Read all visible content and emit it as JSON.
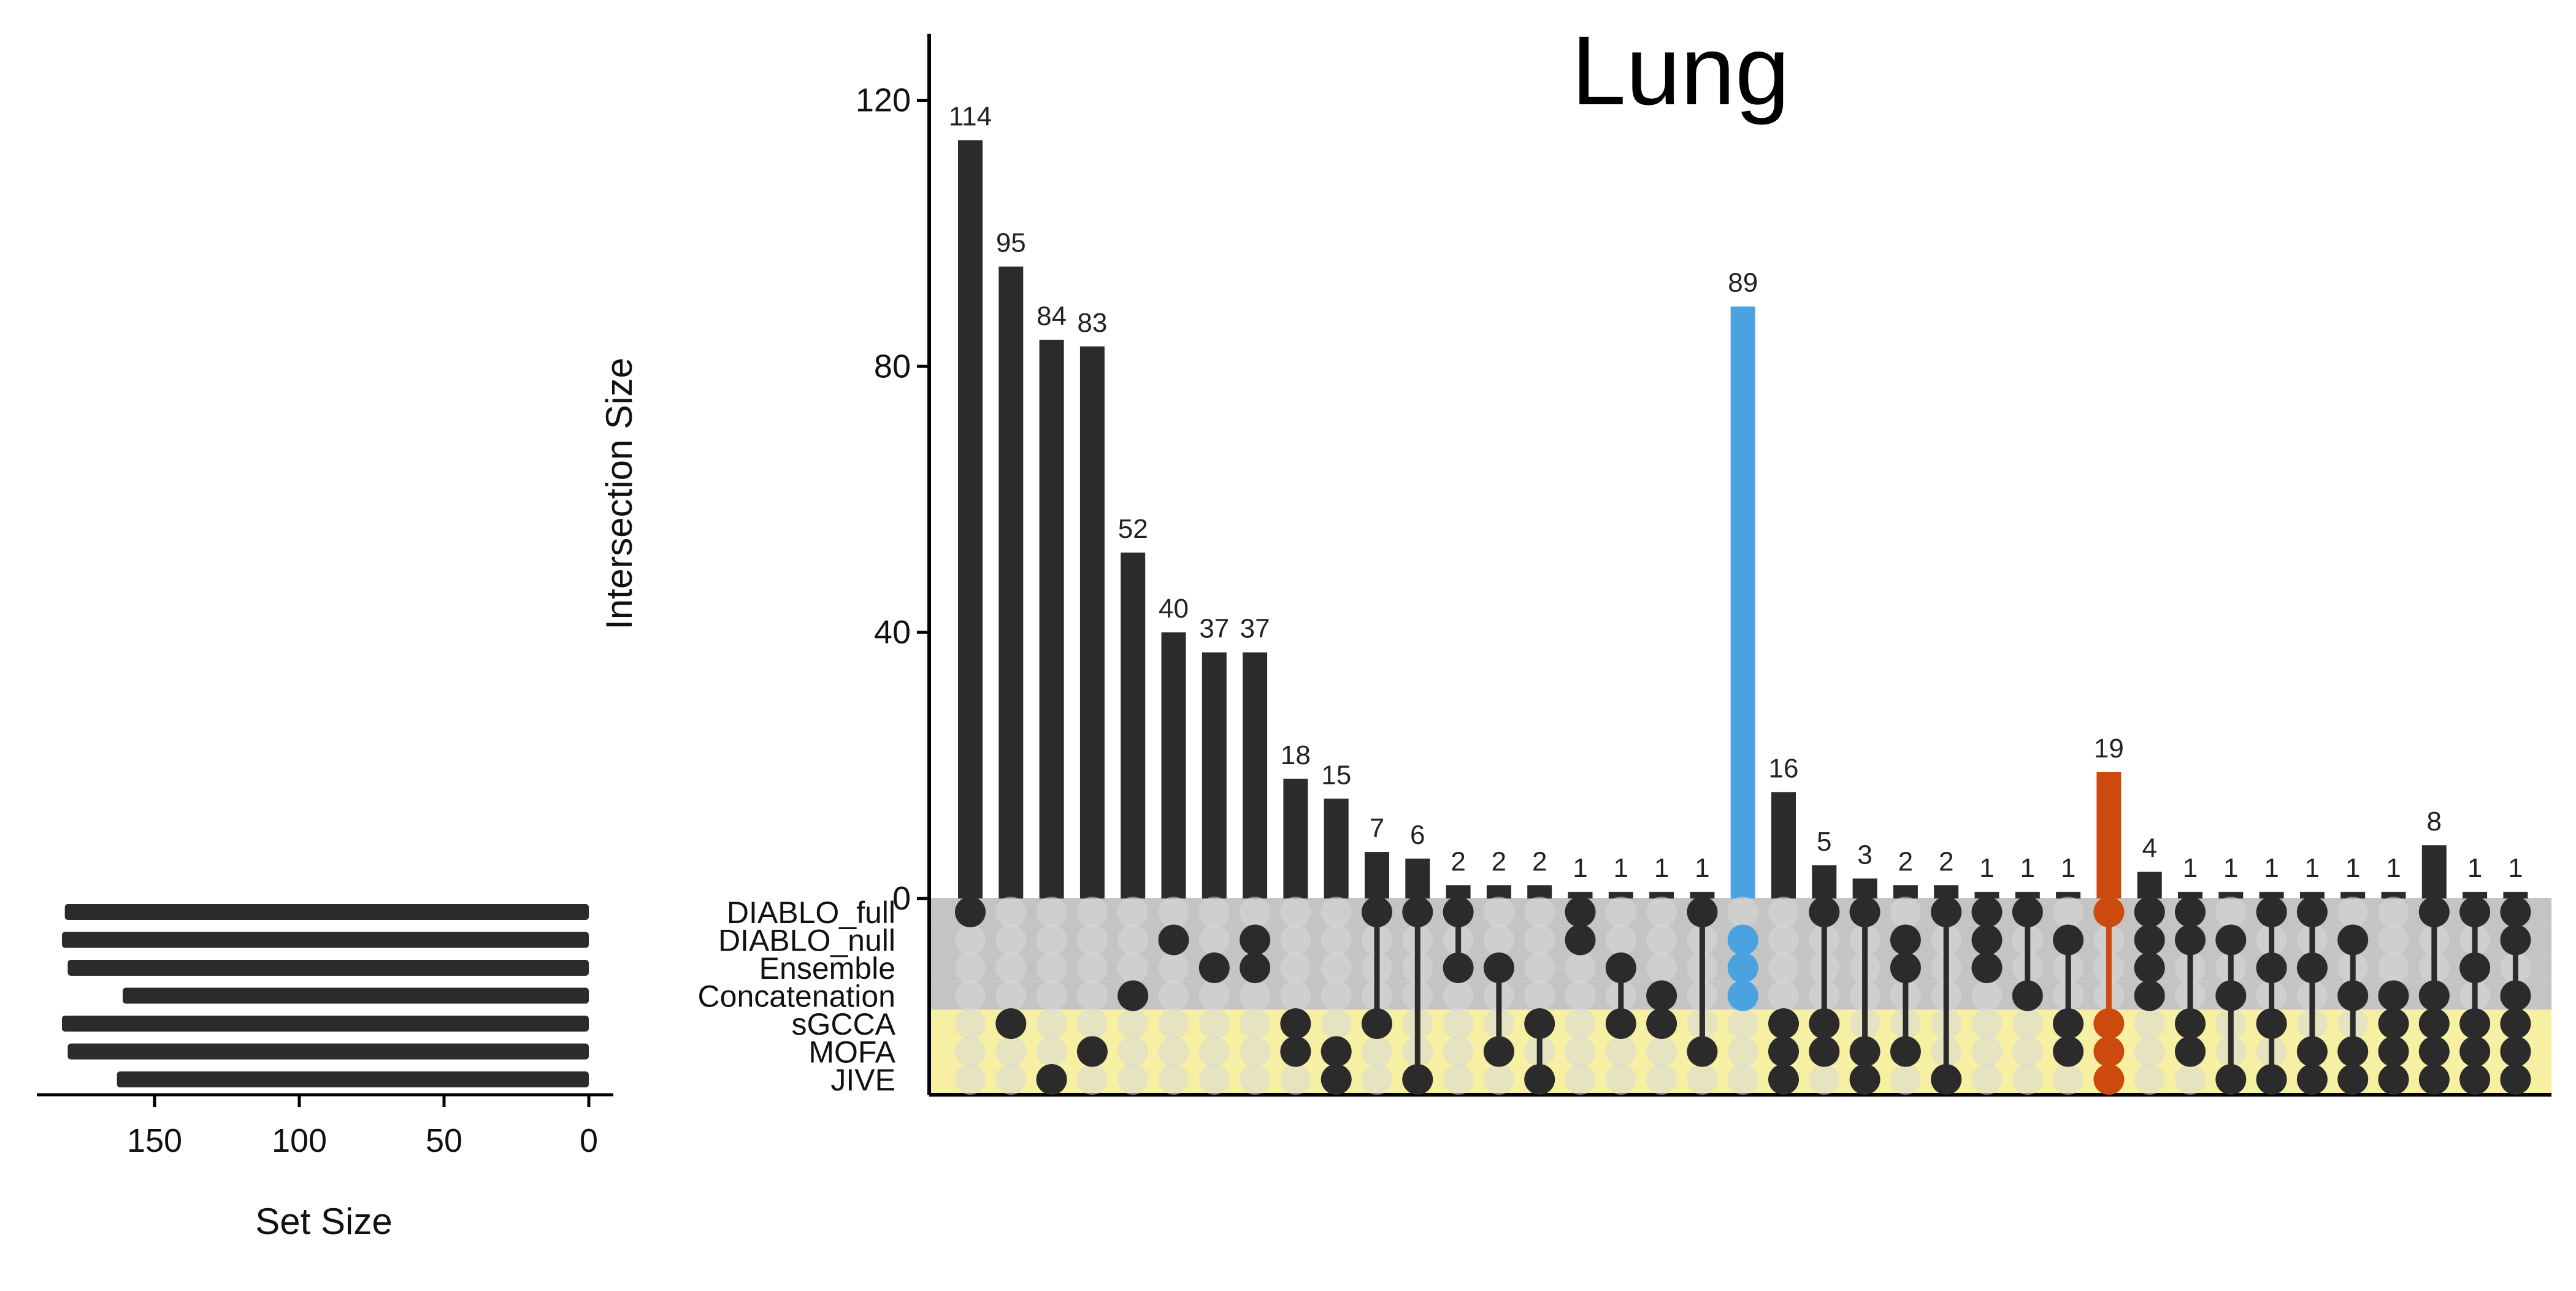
{
  "chart_data": {
    "type": "bar",
    "title": "Lung",
    "ylabel": "Intersection Size",
    "set_size_label": "Set Size",
    "ylim": [
      0,
      130
    ],
    "yticks": [
      0,
      40,
      80,
      120
    ],
    "set_size_ticks": [
      150,
      100,
      50,
      0
    ],
    "set_size_range": [
      0,
      190
    ],
    "sets": [
      "DIABLO_full",
      "DIABLO_null",
      "Ensemble",
      "Concatenation",
      "sGCCA",
      "MOFA",
      "JIVE"
    ],
    "set_sizes": [
      181,
      182,
      180,
      161,
      182,
      180,
      163
    ],
    "set_row_colors": [
      "#c4c4c4",
      "#c4c4c4",
      "#c4c4c4",
      "#c4c4c4",
      "#f7f0a2",
      "#f7f0a2",
      "#f7f0a2"
    ],
    "colors": {
      "default": "#2b2b2b",
      "highlight_blue": "#4aa3e0",
      "highlight_orange": "#cc4a0e",
      "inactive_dot": "#d9d9d9"
    },
    "intersections": [
      {
        "size": 114,
        "sets": [
          0
        ]
      },
      {
        "size": 95,
        "sets": [
          4
        ]
      },
      {
        "size": 84,
        "sets": [
          6
        ]
      },
      {
        "size": 83,
        "sets": [
          5
        ]
      },
      {
        "size": 52,
        "sets": [
          3
        ]
      },
      {
        "size": 40,
        "sets": [
          1
        ]
      },
      {
        "size": 37,
        "sets": [
          2
        ]
      },
      {
        "size": 37,
        "sets": [
          1,
          2
        ]
      },
      {
        "size": 18,
        "sets": [
          4,
          5
        ]
      },
      {
        "size": 15,
        "sets": [
          5,
          6
        ]
      },
      {
        "size": 7,
        "sets": [
          0,
          4
        ]
      },
      {
        "size": 6,
        "sets": [
          0,
          6
        ]
      },
      {
        "size": 2,
        "sets": [
          0,
          2
        ]
      },
      {
        "size": 2,
        "sets": [
          2,
          5
        ]
      },
      {
        "size": 2,
        "sets": [
          4,
          6
        ]
      },
      {
        "size": 1,
        "sets": [
          0,
          1
        ]
      },
      {
        "size": 1,
        "sets": [
          2,
          4
        ]
      },
      {
        "size": 1,
        "sets": [
          3,
          4
        ]
      },
      {
        "size": 1,
        "sets": [
          0,
          5
        ]
      },
      {
        "size": 89,
        "sets": [
          1,
          2,
          3
        ],
        "color": "highlight_blue"
      },
      {
        "size": 16,
        "sets": [
          4,
          5,
          6
        ]
      },
      {
        "size": 5,
        "sets": [
          0,
          4,
          5
        ]
      },
      {
        "size": 3,
        "sets": [
          0,
          5,
          6
        ]
      },
      {
        "size": 2,
        "sets": [
          1,
          2,
          5
        ]
      },
      {
        "size": 2,
        "sets": [
          0,
          6
        ]
      },
      {
        "size": 1,
        "sets": [
          0,
          1,
          2
        ]
      },
      {
        "size": 1,
        "sets": [
          0,
          3
        ]
      },
      {
        "size": 1,
        "sets": [
          1,
          4,
          5
        ]
      },
      {
        "size": 19,
        "sets": [
          0,
          4,
          5,
          6
        ],
        "color": "highlight_orange"
      },
      {
        "size": 4,
        "sets": [
          0,
          1,
          2,
          3
        ]
      },
      {
        "size": 1,
        "sets": [
          0,
          1,
          4,
          5
        ]
      },
      {
        "size": 1,
        "sets": [
          1,
          3,
          6
        ]
      },
      {
        "size": 1,
        "sets": [
          0,
          2,
          4,
          6
        ]
      },
      {
        "size": 1,
        "sets": [
          0,
          2,
          5,
          6
        ]
      },
      {
        "size": 1,
        "sets": [
          1,
          3,
          5,
          6
        ]
      },
      {
        "size": 1,
        "sets": [
          3,
          4,
          5,
          6
        ]
      },
      {
        "size": 8,
        "sets": [
          0,
          3,
          4,
          5,
          6
        ]
      },
      {
        "size": 1,
        "sets": [
          0,
          2,
          4,
          5,
          6
        ]
      },
      {
        "size": 1,
        "sets": [
          0,
          1,
          3,
          4,
          5,
          6
        ]
      }
    ]
  }
}
